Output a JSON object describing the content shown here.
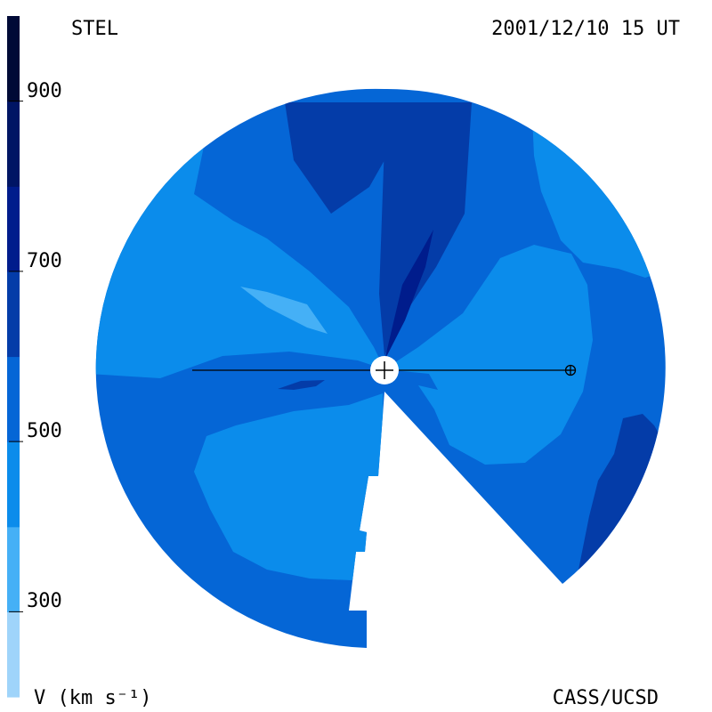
{
  "header": {
    "observatory": "STEL",
    "timestamp": "2001/12/10 15 UT"
  },
  "footer": {
    "unit_label": "V (km s⁻¹)",
    "credit": "CASS/UCSD"
  },
  "color_scale": {
    "quantity": "solar wind speed",
    "min": 200,
    "max": 1000,
    "ticks": [
      {
        "value": 300,
        "label": "300"
      },
      {
        "value": 500,
        "label": "500"
      },
      {
        "value": 700,
        "label": "700"
      },
      {
        "value": 900,
        "label": "900"
      }
    ],
    "bands": [
      {
        "from": 200,
        "to": 300,
        "color": "#9fd4fa"
      },
      {
        "from": 300,
        "to": 400,
        "color": "#45b0f6"
      },
      {
        "from": 400,
        "to": 500,
        "color": "#0b8ceb"
      },
      {
        "from": 500,
        "to": 600,
        "color": "#0566d6"
      },
      {
        "from": 600,
        "to": 700,
        "color": "#043ca8"
      },
      {
        "from": 700,
        "to": 800,
        "color": "#001c8c"
      },
      {
        "from": 800,
        "to": 900,
        "color": "#001564"
      },
      {
        "from": 900,
        "to": 1000,
        "color": "#000a36"
      }
    ]
  },
  "map": {
    "center_marker": "sun-marker",
    "earth_marker": "earth-symbol",
    "data_gap": "no-data-wedge"
  }
}
